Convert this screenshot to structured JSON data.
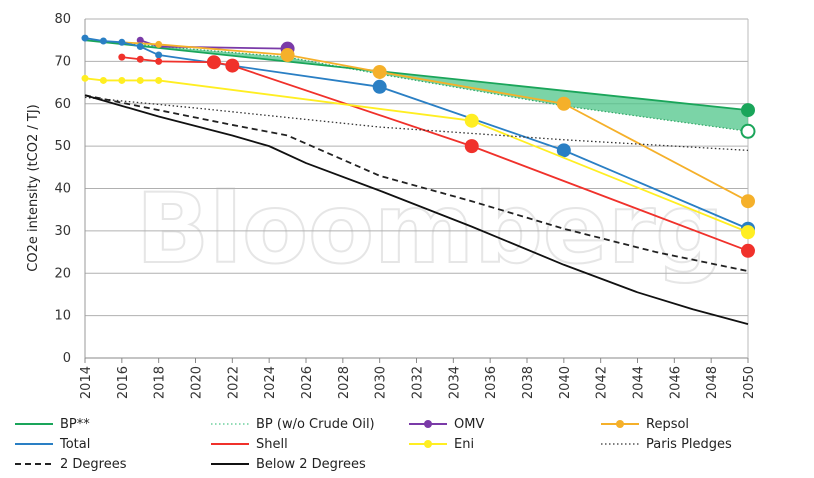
{
  "chart_data": {
    "type": "line",
    "watermark": "Bloomberg",
    "ylabel": "CO2e intensity (tCO2 / TJ)",
    "xlim": [
      2014,
      2050
    ],
    "ylim": [
      0,
      80
    ],
    "x_ticks": [
      2014,
      2016,
      2018,
      2020,
      2022,
      2024,
      2026,
      2028,
      2030,
      2032,
      2034,
      2036,
      2038,
      2040,
      2042,
      2044,
      2046,
      2048,
      2050
    ],
    "y_ticks": [
      0,
      10,
      20,
      30,
      40,
      50,
      60,
      70,
      80
    ],
    "grid": "horizontal",
    "legend_position": "bottom",
    "band": {
      "name": "BP (w/o Crude Oil)",
      "upper": [
        [
          2014,
          75
        ],
        [
          2050,
          58.5
        ]
      ],
      "lower": [
        [
          2014,
          75
        ],
        [
          2025,
          71
        ],
        [
          2030,
          67
        ],
        [
          2040,
          59.5
        ],
        [
          2050,
          53.5
        ]
      ],
      "color": "#4fc68a"
    },
    "series": [
      {
        "name": "BP**",
        "color": "#1aa55a",
        "style": "solid",
        "points": [
          [
            2014,
            75
          ],
          [
            2050,
            58.5
          ]
        ],
        "markers": [
          [
            2050,
            58.5
          ]
        ]
      },
      {
        "name": "OMV",
        "color": "#7a3aa8",
        "style": "solid",
        "points": [
          [
            2017,
            75
          ],
          [
            2018,
            73.5
          ],
          [
            2025,
            73
          ]
        ],
        "markers": [
          [
            2017,
            75
          ],
          [
            2025,
            73
          ]
        ]
      },
      {
        "name": "Repsol",
        "color": "#f5b02a",
        "style": "solid",
        "points": [
          [
            2016,
            74.5
          ],
          [
            2018,
            74
          ],
          [
            2025,
            71.5
          ],
          [
            2030,
            67.5
          ],
          [
            2040,
            60
          ],
          [
            2050,
            37
          ]
        ],
        "markers": [
          [
            2018,
            74
          ],
          [
            2025,
            71.5
          ],
          [
            2030,
            67.5
          ],
          [
            2040,
            60
          ],
          [
            2050,
            37
          ]
        ]
      },
      {
        "name": "Total",
        "color": "#2a7fc4",
        "style": "solid",
        "points": [
          [
            2014,
            75.5
          ],
          [
            2015,
            74.8
          ],
          [
            2016,
            74.5
          ],
          [
            2017,
            73.5
          ],
          [
            2018,
            71.5
          ],
          [
            2030,
            64
          ],
          [
            2040,
            49
          ],
          [
            2050,
            30.5
          ]
        ],
        "markers": [
          [
            2014,
            75.5
          ],
          [
            2015,
            74.8
          ],
          [
            2016,
            74.5
          ],
          [
            2017,
            73.5
          ],
          [
            2018,
            71.5
          ],
          [
            2030,
            64
          ],
          [
            2040,
            49
          ],
          [
            2050,
            30.5
          ]
        ]
      },
      {
        "name": "Shell",
        "color": "#f0312b",
        "style": "solid",
        "points": [
          [
            2016,
            71
          ],
          [
            2017,
            70.5
          ],
          [
            2018,
            70
          ],
          [
            2021,
            69.8
          ],
          [
            2022,
            69
          ],
          [
            2035,
            50
          ],
          [
            2050,
            25.3
          ]
        ],
        "markers": [
          [
            2016,
            71
          ],
          [
            2017,
            70.5
          ],
          [
            2018,
            70
          ],
          [
            2021,
            69.8
          ],
          [
            2022,
            69
          ],
          [
            2035,
            50
          ],
          [
            2050,
            25.3
          ]
        ]
      },
      {
        "name": "Eni",
        "color": "#ffee22",
        "style": "solid",
        "points": [
          [
            2014,
            66
          ],
          [
            2015,
            65.5
          ],
          [
            2016,
            65.5
          ],
          [
            2017,
            65.5
          ],
          [
            2018,
            65.5
          ],
          [
            2035,
            56
          ],
          [
            2050,
            29.7
          ]
        ],
        "markers": [
          [
            2014,
            66
          ],
          [
            2015,
            65.5
          ],
          [
            2016,
            65.5
          ],
          [
            2017,
            65.5
          ],
          [
            2018,
            65.5
          ],
          [
            2035,
            56
          ],
          [
            2050,
            29.7
          ]
        ]
      },
      {
        "name": "Paris Pledges",
        "color": "#333333",
        "style": "dotted",
        "points": [
          [
            2014,
            61.5
          ],
          [
            2020,
            59
          ],
          [
            2030,
            54.5
          ],
          [
            2040,
            51.5
          ],
          [
            2050,
            49
          ]
        ],
        "markers": []
      },
      {
        "name": "2 Degrees",
        "color": "#222222",
        "style": "dashed",
        "points": [
          [
            2014,
            62
          ],
          [
            2018,
            58.5
          ],
          [
            2022,
            55
          ],
          [
            2025,
            52.5
          ],
          [
            2030,
            43
          ],
          [
            2035,
            37
          ],
          [
            2040,
            30.5
          ],
          [
            2045,
            25
          ],
          [
            2050,
            20.5
          ]
        ],
        "markers": []
      },
      {
        "name": "Below 2 Degrees",
        "color": "#111111",
        "style": "solid",
        "points": [
          [
            2014,
            62
          ],
          [
            2018,
            57
          ],
          [
            2022,
            52.5
          ],
          [
            2024,
            50
          ],
          [
            2026,
            46
          ],
          [
            2030,
            39.5
          ],
          [
            2035,
            31
          ],
          [
            2040,
            22
          ],
          [
            2044,
            15.5
          ],
          [
            2047,
            11.5
          ],
          [
            2050,
            8
          ]
        ],
        "markers": []
      }
    ]
  },
  "legend": [
    {
      "label": "BP**",
      "color": "#1aa55a",
      "style": "solid",
      "marker": false
    },
    {
      "label": "BP (w/o Crude Oil)",
      "color": "#4fc68a",
      "style": "dotted",
      "marker": false
    },
    {
      "label": "OMV",
      "color": "#7a3aa8",
      "style": "solid",
      "marker": true
    },
    {
      "label": "Repsol",
      "color": "#f5b02a",
      "style": "solid",
      "marker": true
    },
    {
      "label": "Total",
      "color": "#2a7fc4",
      "style": "solid",
      "marker": false
    },
    {
      "label": "Shell",
      "color": "#f0312b",
      "style": "solid",
      "marker": false
    },
    {
      "label": "Eni",
      "color": "#ffee22",
      "style": "solid",
      "marker": true
    },
    {
      "label": "Paris Pledges",
      "color": "#333333",
      "style": "dotted",
      "marker": false
    },
    {
      "label": "2 Degrees",
      "color": "#222222",
      "style": "dashed",
      "marker": false
    },
    {
      "label": "Below 2 Degrees",
      "color": "#111111",
      "style": "solid",
      "marker": false
    }
  ]
}
